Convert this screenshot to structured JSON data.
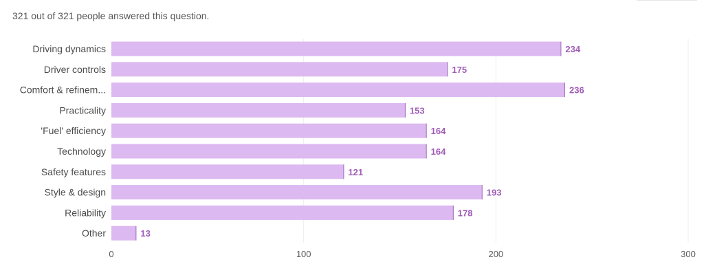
{
  "summary": {
    "text": "321 out of 321 people answered this question."
  },
  "colors": {
    "bar_fill": "#dcb9f0",
    "bar_edge": "#a46ac0",
    "value_text": "#a05cb8",
    "gridline": "#eeeeee"
  },
  "chart_data": {
    "type": "bar",
    "orientation": "horizontal",
    "categories": [
      "Driving dynamics",
      "Driver controls",
      "Comfort & refinem...",
      "Practicality",
      "'Fuel' efficiency",
      "Technology",
      "Safety features",
      "Style & design",
      "Reliability",
      "Other"
    ],
    "values": [
      234,
      175,
      236,
      153,
      164,
      164,
      121,
      193,
      178,
      13
    ],
    "xticks": [
      0,
      100,
      200,
      300
    ],
    "xlim": [
      0,
      300
    ],
    "grid": true,
    "data_labels": true
  }
}
